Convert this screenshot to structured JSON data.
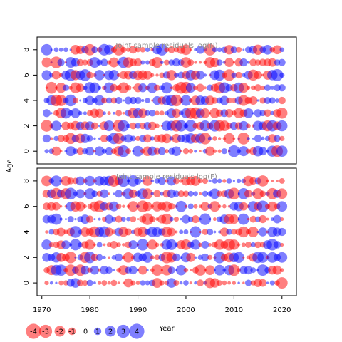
{
  "chart_data": {
    "type": "scatter",
    "encoding": "bubble",
    "xlabel": "Year",
    "ylabel": "Age",
    "x_ticks": [
      1970,
      1980,
      1990,
      2000,
      2010,
      2020
    ],
    "xlim": [
      1969,
      2023
    ],
    "years": [
      1971,
      2020
    ],
    "y_ticks": [
      0,
      2,
      4,
      6,
      8
    ],
    "ages": [
      0,
      1,
      2,
      3,
      4,
      5,
      6,
      7,
      8
    ],
    "ylim": [
      -1,
      9
    ],
    "colors": {
      "positive": "#ff0000",
      "negative": "#0000ff"
    },
    "panels": [
      {
        "title": "Joint sample residuals log(N)",
        "seed": 11
      },
      {
        "title": "Joint sample residuals log(F)",
        "seed": 37
      }
    ],
    "legend": {
      "placement": "bottom-left",
      "values": [
        -4,
        -3,
        -2,
        -1,
        0,
        1,
        2,
        3,
        4
      ],
      "labels": [
        "-4",
        "-3",
        "-2",
        "-1",
        "0",
        "1",
        "2",
        "3",
        "4"
      ]
    }
  }
}
